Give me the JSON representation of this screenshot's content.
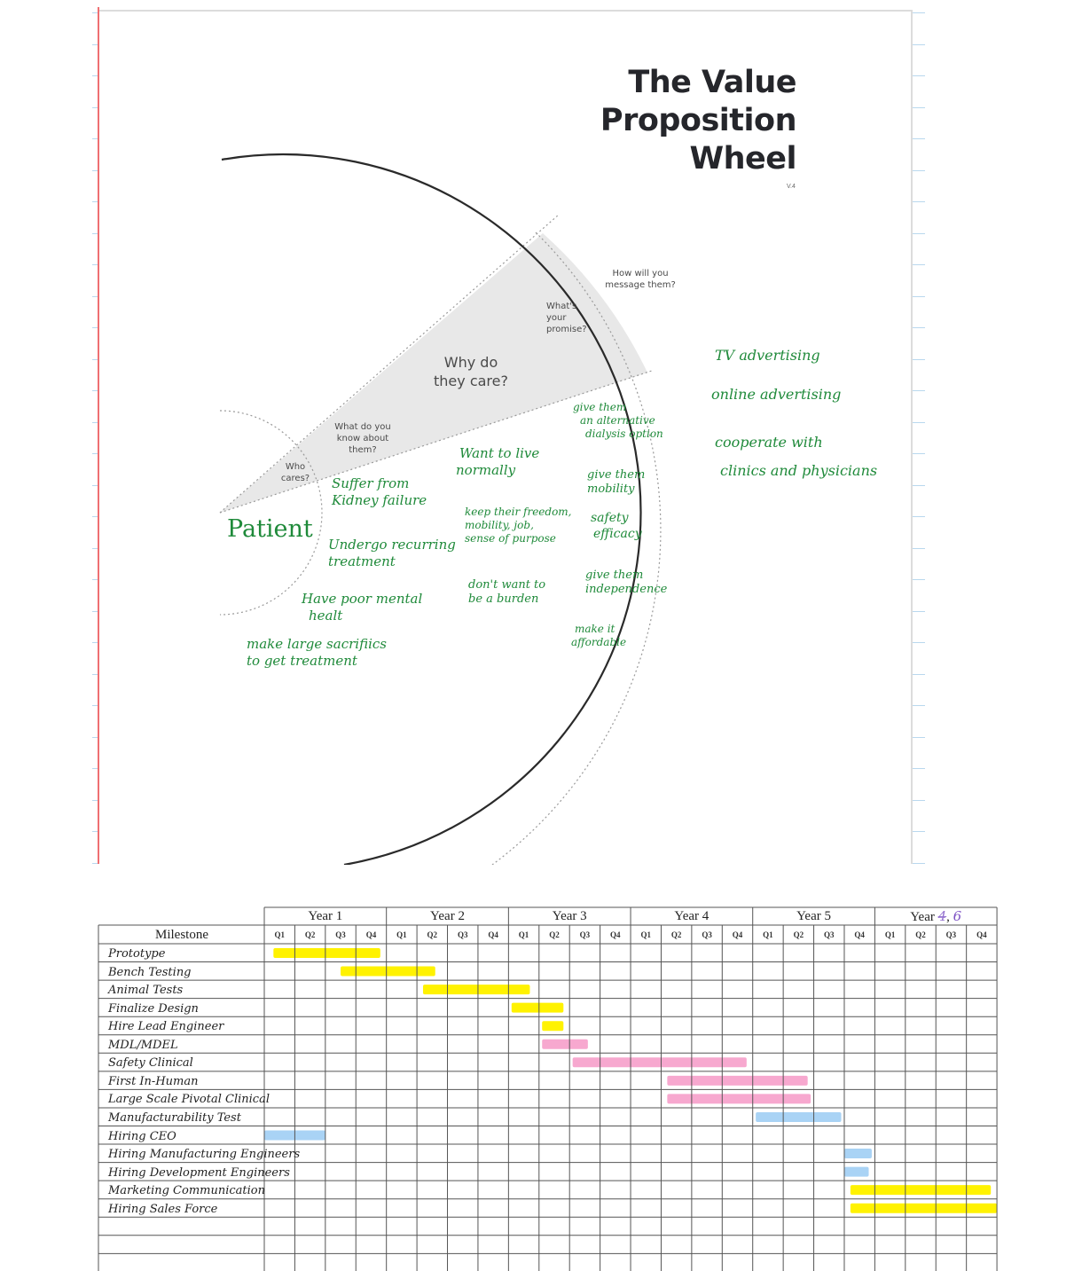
{
  "wheel": {
    "title_lines": [
      "The Value",
      "Proposition",
      "Wheel"
    ],
    "version": "V.4",
    "segments": {
      "who_cares": [
        "Who",
        "cares?"
      ],
      "what_do_you_know": [
        "What do you",
        "know about",
        "them?"
      ],
      "why_do_they_care": [
        "Why do",
        "they care?"
      ],
      "whats_your_promise": [
        "What's",
        "your",
        "promise?"
      ],
      "how_will_you_message": [
        "How will you",
        "message them?"
      ]
    },
    "notes": {
      "who": [
        "Patient"
      ],
      "know": [
        [
          "Suffer from",
          "Kidney failure"
        ],
        [
          "Undergo recurring",
          "treatment"
        ],
        [
          "Have poor mental",
          "healt"
        ],
        [
          "make large sacrifiics",
          "to get treatment"
        ]
      ],
      "care": [
        [
          "Want to live",
          "normally"
        ],
        [
          "keep their freedom,",
          "mobility, job,",
          "sense of purpose"
        ],
        [
          "don't want to",
          "be a burden"
        ]
      ],
      "promise": [
        [
          "give them",
          "an alternative",
          "dialysis option"
        ],
        [
          "give them",
          "mobility"
        ],
        [
          "safety",
          "efficacy"
        ],
        [
          "give them",
          "independence"
        ],
        [
          "make it",
          "affordable"
        ]
      ],
      "message": [
        [
          "TV advertising"
        ],
        [
          "online advertising"
        ],
        [
          "cooperate with",
          "clinics and physicians"
        ]
      ]
    },
    "colors": {
      "handwriting": "#1f8a3a",
      "wedge_fill": "#e8e8e8",
      "margin_line": "#ef6f72",
      "title": "#25262b"
    }
  },
  "chart_data": {
    "type": "gantt",
    "title": "",
    "header": {
      "milestone_label": "Milestone"
    },
    "years": [
      "Year 1",
      "Year 2",
      "Year 3",
      "Year 4",
      "Year 5",
      "Year 6"
    ],
    "year6_correction": {
      "struck": "4",
      "written": "6"
    },
    "quarters": [
      "Q1",
      "Q2",
      "Q3",
      "Q4"
    ],
    "rows": [
      {
        "label": "Prototype",
        "start": 0.3,
        "end": 3.8,
        "color": "yellow"
      },
      {
        "label": "Bench Testing",
        "start": 2.5,
        "end": 5.6,
        "color": "yellow"
      },
      {
        "label": "Animal Tests",
        "start": 5.2,
        "end": 8.7,
        "color": "yellow"
      },
      {
        "label": "Finalize Design",
        "start": 8.1,
        "end": 9.8,
        "color": "yellow"
      },
      {
        "label": "Hire Lead Engineer",
        "start": 9.1,
        "end": 9.8,
        "color": "yellow"
      },
      {
        "label": "MDL/MDEL",
        "start": 9.1,
        "end": 10.6,
        "color": "pink"
      },
      {
        "label": "Safety Clinical",
        "start": 10.1,
        "end": 15.8,
        "color": "pink"
      },
      {
        "label": "First In-Human",
        "start": 13.2,
        "end": 17.8,
        "color": "pink"
      },
      {
        "label": "Large Scale Pivotal Clinical",
        "start": 13.2,
        "end": 17.9,
        "color": "pink"
      },
      {
        "label": "Manufacturability Test",
        "start": 16.1,
        "end": 18.9,
        "color": "blue"
      },
      {
        "label": "Hiring CEO",
        "start": 0.0,
        "end": 2.0,
        "color": "blue"
      },
      {
        "label": "Hiring Manufacturing Engineers",
        "start": 19.0,
        "end": 19.9,
        "color": "blue"
      },
      {
        "label": "Hiring Development Engineers",
        "start": 19.0,
        "end": 19.8,
        "color": "blue"
      },
      {
        "label": "Marketing Communication",
        "start": 19.2,
        "end": 23.8,
        "color": "yellow"
      },
      {
        "label": "Hiring Sales Force",
        "start": 19.2,
        "end": 24.0,
        "color": "yellow"
      },
      {
        "label": "",
        "start": null,
        "end": null,
        "color": null
      },
      {
        "label": "",
        "start": null,
        "end": null,
        "color": null
      },
      {
        "label": "",
        "start": null,
        "end": null,
        "color": null
      }
    ],
    "unit": "quarter index (0 = Year 1 Q1)",
    "colors": {
      "yellow": "#fff200",
      "pink": "#f7a8cf",
      "blue": "#a9d3f5"
    }
  }
}
